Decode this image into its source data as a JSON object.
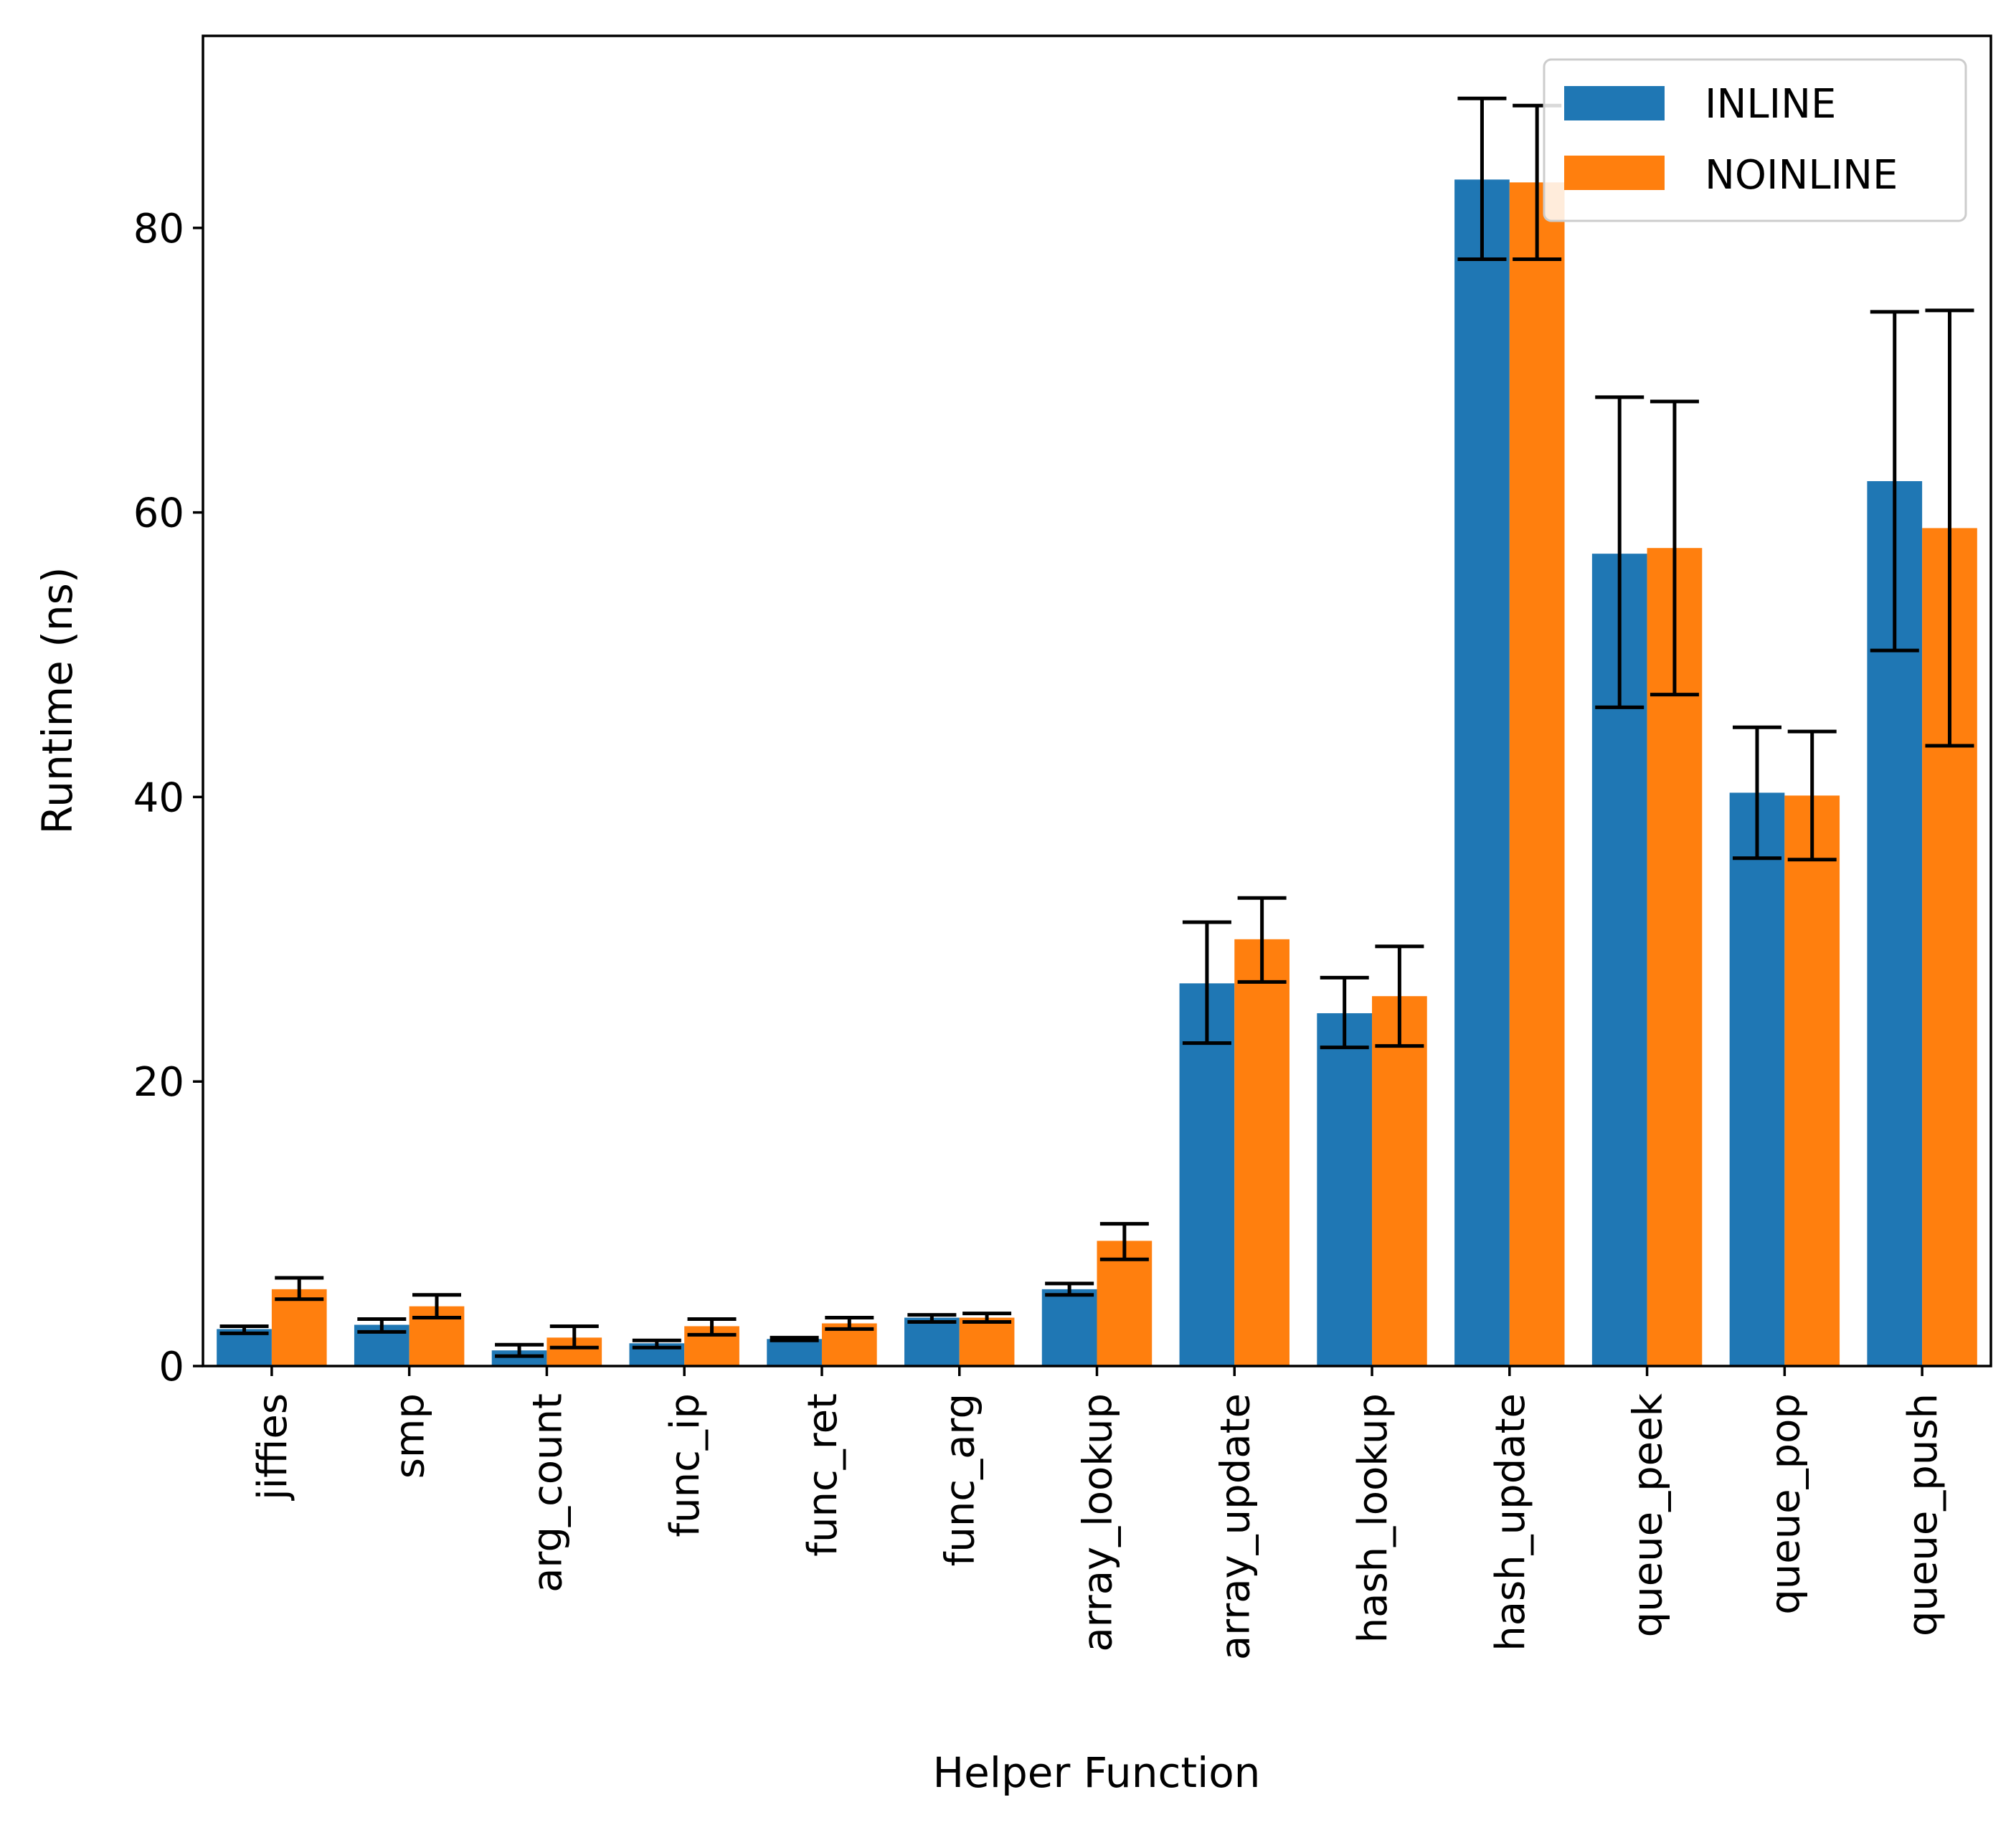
{
  "chart_data": {
    "type": "bar",
    "title": "",
    "xlabel": "Helper Function",
    "ylabel": "Runtime (ns)",
    "ylim": [
      0,
      93.5
    ],
    "yticks": [
      0,
      20,
      40,
      60,
      80
    ],
    "grid": false,
    "legend_position": "top-right",
    "categories": [
      "jiffies",
      "smp",
      "arg_count",
      "func_ip",
      "func_ret",
      "func_arg",
      "array_lookup",
      "array_update",
      "hash_lookup",
      "hash_update",
      "queue_peek",
      "queue_pop",
      "queue_push"
    ],
    "series": [
      {
        "name": "INLINE",
        "color": "#1f77b4",
        "values": [
          2.6,
          2.9,
          1.1,
          1.6,
          1.9,
          3.4,
          5.4,
          26.9,
          24.8,
          83.4,
          57.1,
          40.3,
          62.2
        ],
        "err_low": [
          2.3,
          2.4,
          0.7,
          1.3,
          1.8,
          3.1,
          5.0,
          22.7,
          22.4,
          77.8,
          46.3,
          35.7,
          50.3
        ],
        "err_high": [
          2.8,
          3.3,
          1.5,
          1.8,
          2.0,
          3.6,
          5.8,
          31.2,
          27.3,
          89.1,
          68.1,
          44.9,
          74.1
        ]
      },
      {
        "name": "NOINLINE",
        "color": "#ff7f0e",
        "values": [
          5.4,
          4.2,
          2.0,
          2.8,
          3.0,
          3.4,
          8.8,
          30.0,
          26.0,
          83.2,
          57.5,
          40.1,
          58.9
        ],
        "err_low": [
          4.7,
          3.4,
          1.3,
          2.2,
          2.6,
          3.1,
          7.5,
          27.0,
          22.5,
          77.8,
          47.2,
          35.6,
          43.6
        ],
        "err_high": [
          6.2,
          5.0,
          2.8,
          3.3,
          3.4,
          3.7,
          10.0,
          32.9,
          29.5,
          88.6,
          67.8,
          44.6,
          74.2
        ]
      }
    ]
  }
}
